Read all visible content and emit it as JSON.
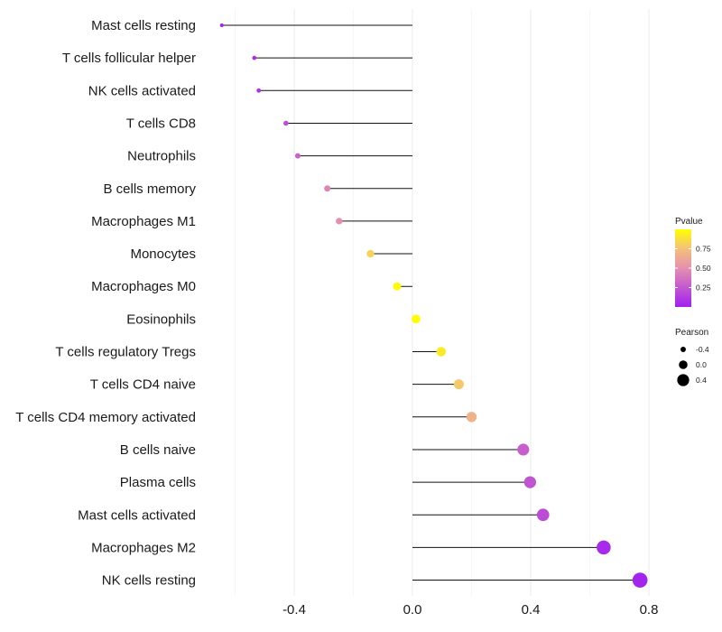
{
  "chart_data": {
    "type": "lollipop",
    "title": "",
    "xlabel": "",
    "ylabel": "",
    "xlim": [
      -0.62,
      0.8
    ],
    "x_ticks": [
      -0.4,
      0.0,
      0.4,
      0.8
    ],
    "x_tick_labels": [
      "-0.4",
      "0.0",
      "0.4",
      "0.8"
    ],
    "grid": true,
    "categories": [
      "Mast cells resting",
      "T cells follicular helper",
      "NK cells activated",
      "T cells CD8",
      "Neutrophils",
      "B cells memory",
      "Macrophages M1",
      "Monocytes",
      "Macrophages M0",
      "Eosinophils",
      "T cells regulatory  Tregs ",
      "T cells CD4 naive",
      "T cells CD4 memory activated",
      "B cells naive",
      "Plasma cells",
      "Mast cells activated",
      "Macrophages M2",
      "NK cells resting"
    ],
    "pearson": [
      -0.645,
      -0.535,
      -0.52,
      -0.428,
      -0.388,
      -0.288,
      -0.248,
      -0.142,
      -0.052,
      0.012,
      0.097,
      0.157,
      0.2,
      0.375,
      0.398,
      0.442,
      0.647,
      0.77
    ],
    "pvalue": [
      0.01,
      0.07,
      0.08,
      0.22,
      0.3,
      0.45,
      0.5,
      0.82,
      0.98,
      0.99,
      0.92,
      0.78,
      0.68,
      0.28,
      0.24,
      0.2,
      0.05,
      0.02
    ],
    "legend_color": {
      "title": "Pvalue",
      "ticks": [
        0.25,
        0.5,
        0.75
      ],
      "tick_labels": [
        "0.25",
        "0.50",
        "0.75"
      ],
      "range": [
        0.0,
        1.0
      ],
      "colors": [
        "#a020f0",
        "#f4a261",
        "#ffff00"
      ]
    },
    "legend_size": {
      "title": "Pearson",
      "values": [
        -0.4,
        0.0,
        0.4
      ],
      "labels": [
        "-0.4",
        "0.0",
        "0.4"
      ]
    }
  }
}
